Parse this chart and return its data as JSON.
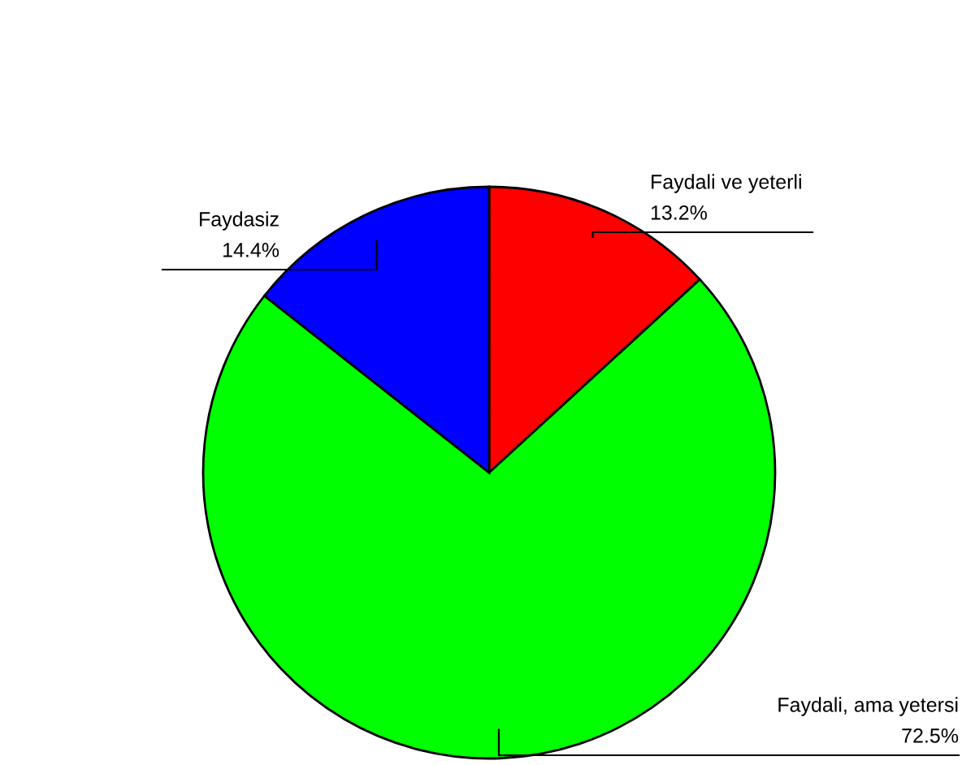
{
  "chart_data": {
    "type": "pie",
    "categories": [
      "Faydali ve yeterli",
      "Faydali, ama yetersi",
      "Faydasiz"
    ],
    "values": [
      13.2,
      72.5,
      14.4
    ],
    "colors": [
      "#ff0000",
      "#00ff00",
      "#0000ff"
    ],
    "value_labels": [
      "13.2%",
      "72.5%",
      "14.4%"
    ],
    "legend": false
  }
}
